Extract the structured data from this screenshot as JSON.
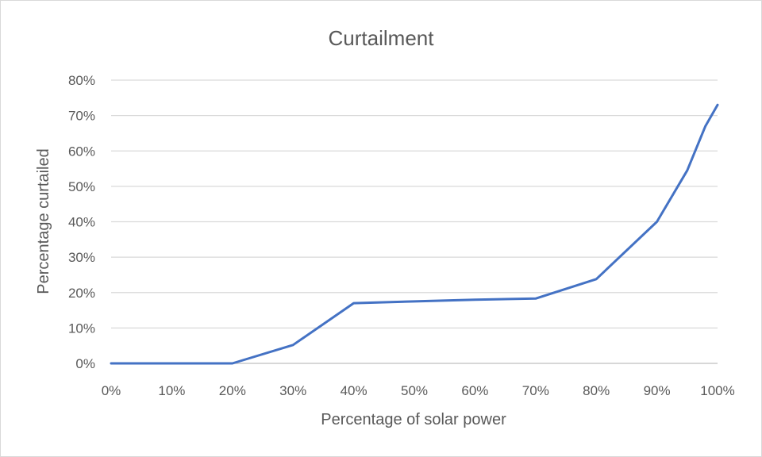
{
  "chart_data": {
    "type": "line",
    "title": "Curtailment",
    "xlabel": "Percentage of solar power",
    "ylabel": "Percentage curtailed",
    "xlim": [
      0,
      100
    ],
    "ylim": [
      0,
      80
    ],
    "x_ticks": [
      "0%",
      "10%",
      "20%",
      "30%",
      "40%",
      "50%",
      "60%",
      "70%",
      "80%",
      "90%",
      "100%"
    ],
    "y_ticks": [
      "0%",
      "10%",
      "20%",
      "30%",
      "40%",
      "50%",
      "60%",
      "70%",
      "80%"
    ],
    "x_tick_values": [
      0,
      10,
      20,
      30,
      40,
      50,
      60,
      70,
      80,
      90,
      100
    ],
    "y_tick_values": [
      0,
      10,
      20,
      30,
      40,
      50,
      60,
      70,
      80
    ],
    "grid": true,
    "legend": "none",
    "series": [
      {
        "color": "#4472c4",
        "x": [
          0,
          10,
          20,
          30,
          40,
          50,
          60,
          70,
          80,
          90,
          95,
          98,
          100
        ],
        "y": [
          0,
          0,
          0,
          5.2,
          17,
          17.5,
          18,
          18.3,
          23.8,
          40,
          54.5,
          67,
          73
        ]
      }
    ]
  }
}
